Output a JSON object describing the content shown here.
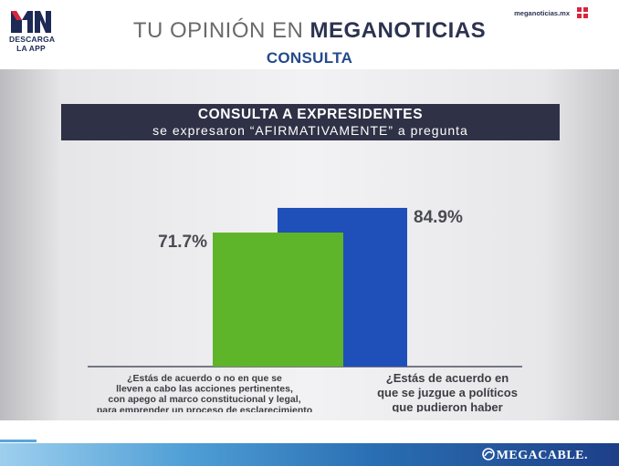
{
  "header": {
    "logo_text": "MN",
    "logo_sub": "DESCARGA\nLA APP",
    "title_light": "TU OPINIÓN EN",
    "title_bold": "MEGANOTICIAS",
    "subtitle": "CONSULTA",
    "site": "meganoticias.mx"
  },
  "banner": {
    "title": "CONSULTA A EXPRESIDENTES",
    "subtitle": "se expresaron “AFIRMATIVAMENTE” a pregunta"
  },
  "colors": {
    "green": "#5fb52a",
    "blue": "#1f4fb8",
    "banner": "#2f3146"
  },
  "chart_data": {
    "type": "bar",
    "categories": [
      "¿Estás de acuerdo o no en que se\nlleven a cabo las acciones pertinentes,\ncon apego al marco constitucional y legal,\npara emprender un proceso de esclarecimiento\nde las decisiones políticas tomadas en los\naños pasados por los actores políticos?",
      "¿Estás de acuerdo en\nque se juzgue a políticos\nque pudieron haber\ncometido algún delito?"
    ],
    "values": [
      71.7,
      84.9
    ],
    "labels": [
      "71.7%",
      "84.9%"
    ],
    "title": "CONSULTA A EXPRESIDENTES",
    "xlabel": "",
    "ylabel": "",
    "ylim": [
      0,
      100
    ],
    "grid": false,
    "legend": "none"
  },
  "footer": {
    "brand": "MEGACABLE."
  }
}
